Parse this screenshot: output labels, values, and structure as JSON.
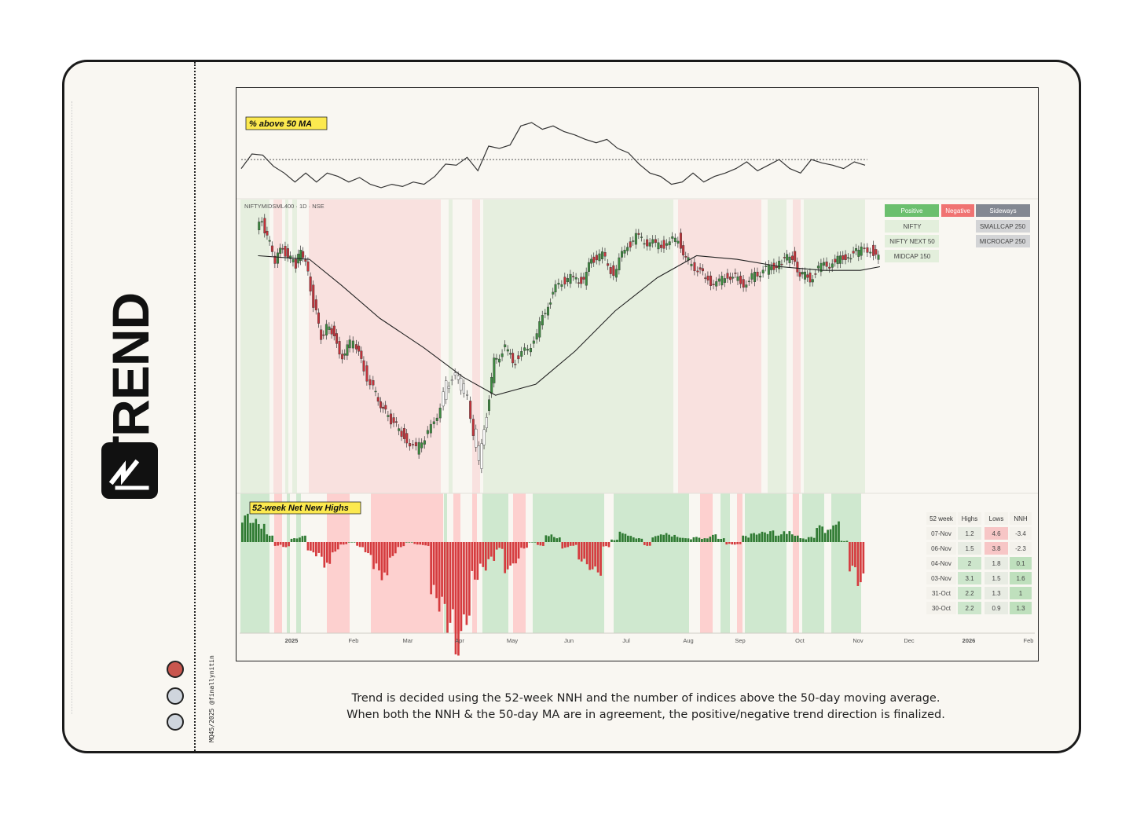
{
  "brand": {
    "word": "TREND",
    "handle": "MQ45/2025 @finallynitin"
  },
  "caption": {
    "line1": "Trend is decided using the 52-week NNH and the number of indices above the 50-day moving average.",
    "line2": "When both the NNH & the 50-day MA are in agreement, the positive/negative trend direction is finalized."
  },
  "colors": {
    "positive": "#6bbf6e",
    "negative": "#f07372",
    "sideways": "#838892",
    "pos_bg": "#e6efdf",
    "neg_bg": "#f9e1df",
    "nnh_pos_bg": "#cfe8cf",
    "nnh_neg_bg": "#fdd0cf"
  },
  "chart_data": {
    "type": "line",
    "symbol_label": "NIFTYMIDSML400 · 1D · NSE",
    "panels": {
      "top_label": "% above 50 MA",
      "bottom_label": "52-week Net New Highs"
    },
    "x_axis_labels": [
      "2025",
      "Feb",
      "Mar",
      "Apr",
      "May",
      "Jun",
      "Jul",
      "Aug",
      "Sep",
      "Oct",
      "Nov",
      "Dec",
      "2026",
      "Feb"
    ],
    "legend": {
      "headers": [
        "Positive",
        "Negative",
        "Sideways"
      ],
      "positive_items": [
        "NIFTY",
        "NIFTY NEXT 50",
        "MIDCAP 150"
      ],
      "sideways_items": [
        "SMALLCAP 250",
        "MICROCAP 250"
      ]
    },
    "nnh_table": {
      "headers": [
        "52 week",
        "Highs",
        "Lows",
        "NNH"
      ],
      "rows": [
        [
          "07-Nov",
          "1.2",
          "4.6",
          "-3.4"
        ],
        [
          "06-Nov",
          "1.5",
          "3.8",
          "-2.3"
        ],
        [
          "04-Nov",
          "2",
          "1.8",
          "0.1"
        ],
        [
          "03-Nov",
          "3.1",
          "1.5",
          "1.6"
        ],
        [
          "31-Oct",
          "2.2",
          "1.3",
          "1"
        ],
        [
          "30-Oct",
          "2.2",
          "0.9",
          "1.3"
        ]
      ]
    },
    "price_series": {
      "name": "NIFTYMIDSML400",
      "points": [
        [
          "Dec-10",
          70
        ],
        [
          "Dec-13",
          72
        ],
        [
          "Dec-17",
          66
        ],
        [
          "Dec-20",
          62
        ],
        [
          "Dec-24",
          65
        ],
        [
          "Dec-31",
          60
        ],
        [
          "Jan-03",
          65
        ],
        [
          "Jan-07",
          58
        ],
        [
          "Jan-10",
          50
        ],
        [
          "Jan-14",
          41
        ],
        [
          "Jan-17",
          44
        ],
        [
          "Jan-21",
          42
        ],
        [
          "Jan-24",
          35
        ],
        [
          "Jan-28",
          38
        ],
        [
          "Feb-01",
          40
        ],
        [
          "Feb-05",
          34
        ],
        [
          "Feb-10",
          28
        ],
        [
          "Feb-14",
          24
        ],
        [
          "Feb-18",
          20
        ],
        [
          "Feb-21",
          18
        ],
        [
          "Feb-28",
          14
        ],
        [
          "Mar-04",
          10
        ],
        [
          "Mar-07",
          12
        ],
        [
          "Mar-12",
          16
        ],
        [
          "Mar-17",
          22
        ],
        [
          "Mar-20",
          28
        ],
        [
          "Mar-25",
          30
        ],
        [
          "Mar-28",
          27
        ],
        [
          "Apr-01",
          24
        ],
        [
          "Apr-07",
          6
        ],
        [
          "Apr-11",
          20
        ],
        [
          "Apr-15",
          34
        ],
        [
          "Apr-21",
          38
        ],
        [
          "Apr-25",
          34
        ],
        [
          "Apr-30",
          36
        ],
        [
          "May-06",
          40
        ],
        [
          "May-12",
          48
        ],
        [
          "May-16",
          53
        ],
        [
          "May-21",
          56
        ],
        [
          "May-27",
          57
        ],
        [
          "Jun-02",
          56
        ],
        [
          "Jun-06",
          62
        ],
        [
          "Jun-12",
          63
        ],
        [
          "Jun-18",
          58
        ],
        [
          "Jun-24",
          65
        ],
        [
          "Jun-30",
          68
        ],
        [
          "Jul-04",
          67
        ],
        [
          "Jul-10",
          66
        ],
        [
          "Jul-16",
          66
        ],
        [
          "Jul-22",
          68
        ],
        [
          "Jul-26",
          62
        ],
        [
          "Jul-31",
          60
        ],
        [
          "Aug-06",
          57
        ],
        [
          "Aug-12",
          55
        ],
        [
          "Aug-18",
          58
        ],
        [
          "Aug-22",
          57
        ],
        [
          "Aug-28",
          55
        ],
        [
          "Sep-02",
          58
        ],
        [
          "Sep-08",
          59
        ],
        [
          "Sep-15",
          61
        ],
        [
          "Sep-22",
          63
        ],
        [
          "Sep-26",
          58
        ],
        [
          "Oct-01",
          57
        ],
        [
          "Oct-07",
          60
        ],
        [
          "Oct-13",
          61
        ],
        [
          "Oct-20",
          63
        ],
        [
          "Oct-27",
          64
        ],
        [
          "Nov-03",
          65
        ],
        [
          "Nov-07",
          62
        ]
      ]
    },
    "ma_series": {
      "name": "50-day MA",
      "points": [
        [
          "Dec-10",
          63
        ],
        [
          "Jan-07",
          62
        ],
        [
          "Jan-24",
          55
        ],
        [
          "Feb-14",
          46
        ],
        [
          "Mar-07",
          38
        ],
        [
          "Mar-28",
          30
        ],
        [
          "Apr-15",
          25
        ],
        [
          "May-06",
          28
        ],
        [
          "May-27",
          37
        ],
        [
          "Jun-18",
          48
        ],
        [
          "Jul-10",
          57
        ],
        [
          "Jul-31",
          63
        ],
        [
          "Aug-22",
          62
        ],
        [
          "Sep-15",
          60
        ],
        [
          "Oct-07",
          59
        ],
        [
          "Oct-27",
          59
        ],
        [
          "Nov-07",
          60
        ]
      ]
    },
    "pct_above_50ma": {
      "name": "% above 50 MA",
      "reference_level": 60,
      "values": [
        52,
        65,
        64,
        54,
        48,
        40,
        48,
        40,
        48,
        45,
        40,
        44,
        38,
        35,
        38,
        36,
        40,
        38,
        45,
        56,
        55,
        62,
        50,
        72,
        70,
        73,
        90,
        93,
        87,
        90,
        85,
        82,
        78,
        75,
        78,
        70,
        66,
        56,
        48,
        45,
        38,
        40,
        48,
        40,
        45,
        48,
        52,
        58,
        50,
        55,
        60,
        52,
        48,
        60,
        57,
        55,
        52,
        58,
        55
      ]
    },
    "nnh_bars": {
      "name": "52-week Net New Highs",
      "values": [
        2.2,
        1.8,
        1.5,
        0.6,
        -0.3,
        -0.4,
        0.3,
        0.5,
        -0.8,
        -1.2,
        -2,
        -0.8,
        -0.2,
        0,
        -0.4,
        -1,
        -2.3,
        -3,
        -1.2,
        -0.4,
        0,
        -0.2,
        -0.3,
        -4.5,
        -5.5,
        -7,
        -9,
        -6.4,
        -3,
        -2.2,
        -1.5,
        -0.6,
        -2.4,
        -1.7,
        -0.5,
        0,
        -0.3,
        0.6,
        0.4,
        -0.5,
        -0.3,
        -1.5,
        -2.2,
        -2.6,
        -0.4,
        0.2,
        0.8,
        0.5,
        0.3,
        -0.3,
        0.5,
        0.7,
        0.6,
        0.4,
        0.3,
        0.4,
        0.3,
        0.6,
        0.3,
        -0.2,
        -0.2,
        0.5,
        0.7,
        0.8,
        0.9,
        0.6,
        0.9,
        0.6,
        0.3,
        0.4,
        1.3,
        1,
        1.6,
        0.1,
        -2.3,
        -3.4
      ]
    }
  }
}
